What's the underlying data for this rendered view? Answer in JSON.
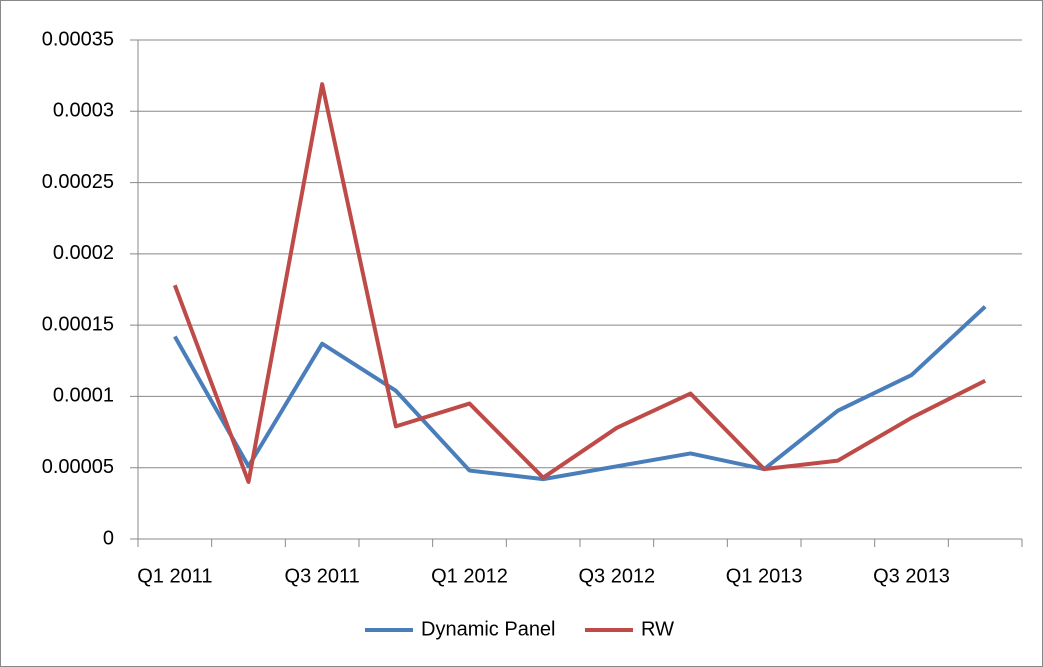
{
  "chart_data": {
    "type": "line",
    "categories": [
      "Q1 2011",
      null,
      "Q3 2011",
      null,
      "Q1 2012",
      null,
      "Q3 2012",
      null,
      "Q1 2013",
      null,
      "Q3 2013",
      null
    ],
    "series": [
      {
        "name": "Dynamic Panel",
        "color": "#4a7ebb",
        "values": [
          0.000142,
          5.1e-05,
          0.000137,
          0.000104,
          4.8e-05,
          4.2e-05,
          5.1e-05,
          6e-05,
          4.9e-05,
          9e-05,
          0.000115,
          0.000163
        ]
      },
      {
        "name": "RW",
        "color": "#be4b48",
        "values": [
          0.000178,
          4e-05,
          0.000319,
          7.9e-05,
          9.5e-05,
          4.3e-05,
          7.8e-05,
          0.000102,
          4.9e-05,
          5.5e-05,
          8.5e-05,
          0.000111
        ]
      }
    ],
    "ylim": [
      0,
      0.00035
    ],
    "yticks": [
      0,
      5e-05,
      0.0001,
      0.00015,
      0.0002,
      0.00025,
      0.0003,
      0.00035
    ],
    "grid": true,
    "legend": "bottom"
  }
}
